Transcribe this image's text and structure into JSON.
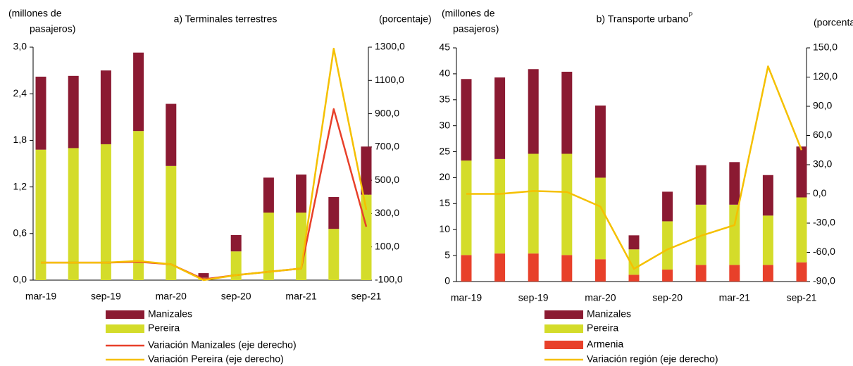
{
  "chart_data": [
    {
      "type": "bar",
      "title": "a) Terminales  terrestres",
      "y_label": [
        "(millones de",
        "pasajeros)"
      ],
      "y2_label": "(porcentaje)",
      "categories": [
        "mar-19",
        null,
        "sep-19",
        null,
        "mar-20",
        null,
        "sep-20",
        null,
        "mar-21",
        null,
        "sep-21"
      ],
      "series": [
        {
          "name": "Pereira",
          "type": "bar",
          "color": "#d4dc2a",
          "values": [
            1.68,
            1.7,
            1.75,
            1.92,
            1.47,
            0.03,
            0.37,
            0.87,
            0.87,
            0.66,
            1.1
          ]
        },
        {
          "name": "Manizales",
          "type": "bar",
          "color": "#8b1a32",
          "values": [
            0.94,
            0.93,
            0.95,
            1.01,
            0.8,
            0.06,
            0.21,
            0.45,
            0.49,
            0.41,
            0.62
          ]
        },
        {
          "name": "Variación Manizales (eje derecho)",
          "type": "line",
          "axis": "y2",
          "color": "#e8402a",
          "values": [
            5,
            5,
            5,
            10,
            -5,
            -95,
            -70,
            -50,
            -30,
            928,
            221
          ]
        },
        {
          "name": "Variación Pereira (eje derecho)",
          "type": "line",
          "axis": "y2",
          "color": "#f5c000",
          "values": [
            5,
            5,
            5,
            15,
            -5,
            -100,
            -70,
            -50,
            -30,
            1291,
            323
          ]
        }
      ],
      "legend_order": [
        1,
        0,
        2,
        3
      ],
      "ylim": [
        0,
        3.0
      ],
      "yticks": [
        {
          "value": 0,
          "label": "0,0"
        },
        {
          "value": 0.6,
          "label": "0,6"
        },
        {
          "value": 1.2,
          "label": "1,2"
        },
        {
          "value": 1.8,
          "label": "1,8"
        },
        {
          "value": 2.4,
          "label": "2,4"
        },
        {
          "value": 3.0,
          "label": "3,0"
        }
      ],
      "y2lim": [
        -100,
        1300
      ],
      "y2ticks": [
        {
          "value": -100,
          "label": "-100,0"
        },
        {
          "value": 100,
          "label": "100,0"
        },
        {
          "value": 300,
          "label": "300,0"
        },
        {
          "value": 500,
          "label": "500,0"
        },
        {
          "value": 700,
          "label": "700,0"
        },
        {
          "value": 900,
          "label": "900,0"
        },
        {
          "value": 1100,
          "label": "1100,0"
        },
        {
          "value": 1300,
          "label": "1300,0"
        }
      ],
      "grid": false
    },
    {
      "type": "bar",
      "title": "b) Transporte urbano",
      "title_superscript": "P",
      "y_label": [
        "(millones de",
        "pasajeros)"
      ],
      "y2_label": "(porcentaje)",
      "categories": [
        "mar-19",
        null,
        "sep-19",
        null,
        "mar-20",
        null,
        "sep-20",
        null,
        "mar-21",
        null,
        "sep-21"
      ],
      "series": [
        {
          "name": "Armenia",
          "type": "bar",
          "color": "#e8402a",
          "values": [
            5.1,
            5.4,
            5.4,
            5.1,
            4.3,
            1.3,
            2.3,
            3.2,
            3.2,
            3.2,
            3.7
          ]
        },
        {
          "name": "Pereira",
          "type": "bar",
          "color": "#d4dc2a",
          "values": [
            18.2,
            18.2,
            19.2,
            19.5,
            15.7,
            4.9,
            9.3,
            11.6,
            11.6,
            9.5,
            12.5
          ]
        },
        {
          "name": "Manizales",
          "type": "bar",
          "color": "#8b1a32",
          "values": [
            15.7,
            15.7,
            16.3,
            15.8,
            13.9,
            2.7,
            5.7,
            7.6,
            8.2,
            7.8,
            9.8
          ]
        },
        {
          "name": "Variación región (eje derecho)",
          "type": "line",
          "axis": "y2",
          "color": "#f5c000",
          "values": [
            0,
            0,
            3,
            2,
            -13,
            -77,
            -57,
            -43,
            -32,
            131,
            45
          ]
        }
      ],
      "legend_order": [
        2,
        1,
        0,
        3
      ],
      "ylim": [
        0,
        45
      ],
      "yticks": [
        0,
        5,
        10,
        15,
        20,
        25,
        30,
        35,
        40,
        45
      ],
      "y2lim": [
        -90,
        150
      ],
      "y2ticks": [
        {
          "value": -90,
          "label": "-90,0"
        },
        {
          "value": -60,
          "label": "-60,0"
        },
        {
          "value": -30,
          "label": "-30,0"
        },
        {
          "value": 0,
          "label": "0,0"
        },
        {
          "value": 30,
          "label": "30,0"
        },
        {
          "value": 60,
          "label": "60,0"
        },
        {
          "value": 90,
          "label": "90,0"
        },
        {
          "value": 120,
          "label": "120,0"
        },
        {
          "value": 150,
          "label": "150,0"
        }
      ],
      "grid": false
    }
  ]
}
